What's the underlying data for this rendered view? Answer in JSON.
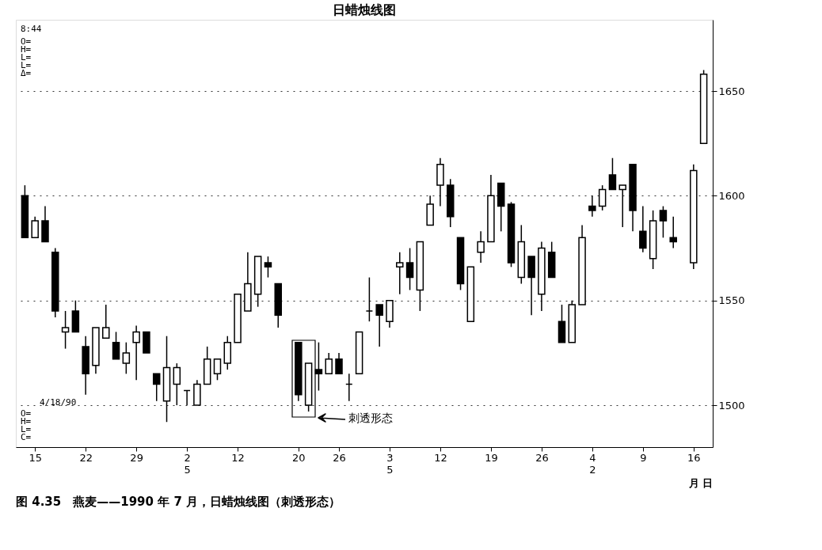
{
  "chart_data": {
    "type": "candlestick",
    "title": "日蜡烛线图",
    "xlabel": "月 日",
    "color": "#000000",
    "categories": [
      null,
      "15",
      null,
      null,
      null,
      null,
      "22",
      null,
      null,
      null,
      null,
      "29",
      null,
      null,
      null,
      null,
      "2\n5",
      null,
      null,
      null,
      null,
      "12",
      null,
      null,
      null,
      null,
      null,
      "20",
      null,
      null,
      null,
      "26",
      null,
      null,
      null,
      null,
      "3\n5",
      null,
      null,
      null,
      null,
      "12",
      null,
      null,
      null,
      null,
      "19",
      null,
      null,
      null,
      null,
      "26",
      null,
      null,
      null,
      null,
      "4\n2",
      null,
      null,
      null,
      null,
      "9",
      null,
      null,
      null,
      null,
      "16",
      null
    ],
    "ohlc": [
      [
        1600,
        1605,
        1580,
        1580
      ],
      [
        1580,
        1590,
        1580,
        1588
      ],
      [
        1588,
        1595,
        1578,
        1578
      ],
      [
        1573,
        1575,
        1542,
        1545
      ],
      [
        1535,
        1545,
        1527,
        1537
      ],
      [
        1545,
        1550,
        1535,
        1535
      ],
      [
        1528,
        1533,
        1505,
        1515
      ],
      [
        1519,
        1537,
        1515,
        1537
      ],
      [
        1532,
        1548,
        1532,
        1537
      ],
      [
        1530,
        1535,
        1522,
        1522
      ],
      [
        1520,
        1530,
        1515,
        1525
      ],
      [
        1530,
        1538,
        1512,
        1535
      ],
      [
        1535,
        1535,
        1525,
        1525
      ],
      [
        1515,
        1515,
        1502,
        1510
      ],
      [
        1502,
        1533,
        1492,
        1518
      ],
      [
        1510,
        1520,
        1500,
        1518
      ],
      [
        1507,
        1507,
        1500,
        1507
      ],
      [
        1500,
        1512,
        1500,
        1510
      ],
      [
        1510,
        1528,
        1510,
        1522
      ],
      [
        1515,
        1522,
        1512,
        1522
      ],
      [
        1520,
        1533,
        1517,
        1530
      ],
      [
        1530,
        1553,
        1530,
        1553
      ],
      [
        1545,
        1573,
        1545,
        1558
      ],
      [
        1553,
        1571,
        1547,
        1571
      ],
      [
        1568,
        1571,
        1561,
        1566
      ],
      [
        1558,
        1558,
        1537,
        1543
      ],
      null,
      [
        1530,
        1530,
        1502,
        1505
      ],
      [
        1500,
        1520,
        1497,
        1520
      ],
      [
        1517,
        1530,
        1507,
        1515
      ],
      [
        1515,
        1525,
        1515,
        1522
      ],
      [
        1522,
        1525,
        1515,
        1515
      ],
      [
        1510,
        1515,
        1502,
        1510
      ],
      [
        1515,
        1535,
        1515,
        1535
      ],
      [
        1545,
        1561,
        1540,
        1545
      ],
      [
        1548,
        1548,
        1528,
        1543
      ],
      [
        1540,
        1550,
        1537,
        1550
      ],
      [
        1566,
        1573,
        1553,
        1568
      ],
      [
        1568,
        1575,
        1555,
        1561
      ],
      [
        1555,
        1578,
        1545,
        1578
      ],
      [
        1586,
        1600,
        1586,
        1596
      ],
      [
        1605,
        1618,
        1595,
        1615
      ],
      [
        1605,
        1608,
        1585,
        1590
      ],
      [
        1580,
        1580,
        1555,
        1558
      ],
      [
        1540,
        1566,
        1540,
        1566
      ],
      [
        1573,
        1583,
        1568,
        1578
      ],
      [
        1578,
        1610,
        1578,
        1600
      ],
      [
        1606,
        1606,
        1583,
        1595
      ],
      [
        1596,
        1597,
        1566,
        1568
      ],
      [
        1561,
        1586,
        1558,
        1578
      ],
      [
        1571,
        1571,
        1543,
        1561
      ],
      [
        1553,
        1578,
        1545,
        1575
      ],
      [
        1573,
        1578,
        1561,
        1561
      ],
      [
        1540,
        1548,
        1530,
        1530
      ],
      [
        1530,
        1550,
        1530,
        1548
      ],
      [
        1548,
        1586,
        1548,
        1580
      ],
      [
        1595,
        1600,
        1590,
        1593
      ],
      [
        1595,
        1605,
        1593,
        1603
      ],
      [
        1610,
        1618,
        1603,
        1603
      ],
      [
        1603,
        1605,
        1585,
        1605
      ],
      [
        1615,
        1615,
        1583,
        1593
      ],
      [
        1583,
        1595,
        1573,
        1575
      ],
      [
        1570,
        1593,
        1565,
        1588
      ],
      [
        1593,
        1595,
        1580,
        1588
      ],
      [
        1580,
        1590,
        1575,
        1578
      ],
      null,
      [
        1568,
        1615,
        1565,
        1612
      ],
      [
        1625,
        1660,
        1625,
        1658
      ]
    ],
    "ylim": [
      1480,
      1684
    ],
    "yticks": [
      1500,
      1550,
      1600,
      1650
    ],
    "grid": "y",
    "annotations": [
      "8:44",
      "O=\nH=\nL=\nL=\nΔ=",
      "4/18/90",
      "O=\nH=\nL=\nC=",
      "刺透形态",
      "图 4.35　燕麦——1990 年 7 月，日蜡烛线图（刺透形态）"
    ]
  }
}
